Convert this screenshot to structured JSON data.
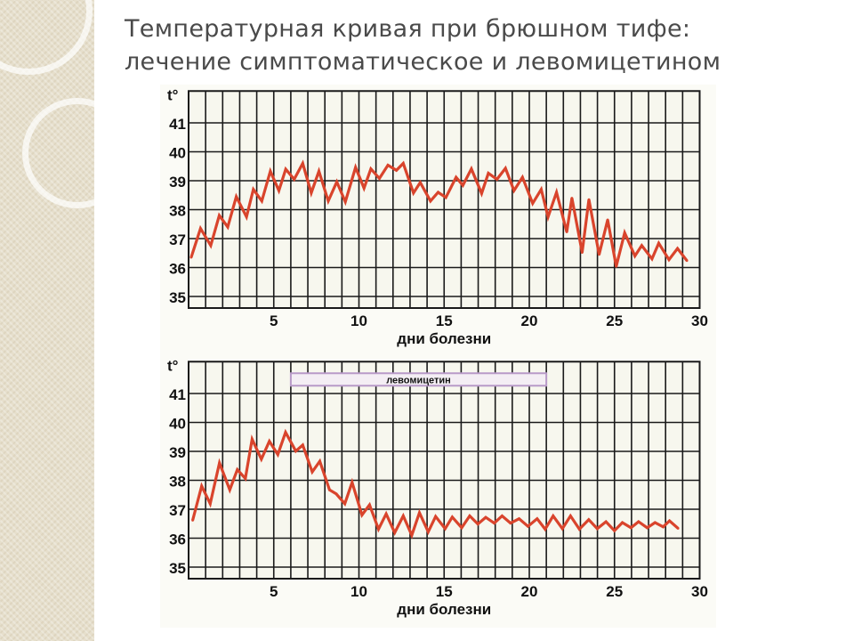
{
  "slide": {
    "title_line1": "Температурная кривая при брюшном тифе:",
    "title_line2": "лечение симптоматическое и левомицетином"
  },
  "colors": {
    "curve": "#d9442c",
    "grid": "#1a1a1a",
    "band": "#b89ac8",
    "plot_bg": "#f7f7ee"
  },
  "chart_data": [
    {
      "type": "line",
      "title": "",
      "xlabel": "дни болезни",
      "ylabel": "t°",
      "xlim": [
        0,
        30
      ],
      "ylim": [
        34.6,
        42.1
      ],
      "xticks": [
        "5",
        "10",
        "15",
        "20",
        "25",
        "30"
      ],
      "yticks": [
        "35",
        "36",
        "37",
        "38",
        "39",
        "40",
        "41"
      ],
      "grid": true,
      "x": [
        0.15,
        0.7,
        1.3,
        1.8,
        2.3,
        2.8,
        3.4,
        3.8,
        4.3,
        4.8,
        5.3,
        5.7,
        6.2,
        6.7,
        7.2,
        7.65,
        8.2,
        8.7,
        9.2,
        9.8,
        10.3,
        10.7,
        11.2,
        11.7,
        12.2,
        12.6,
        13.2,
        13.6,
        14.2,
        14.65,
        15.1,
        15.7,
        16.1,
        16.6,
        17.2,
        17.6,
        18.1,
        18.6,
        19.1,
        19.6,
        20.2,
        20.7,
        21.1,
        21.6,
        22.2,
        22.5,
        23.1,
        23.5,
        24.1,
        24.6,
        25.1,
        25.6,
        26.2,
        26.6,
        27.2,
        27.6,
        28.2,
        28.7,
        29.25
      ],
      "y": [
        36.35,
        37.35,
        36.76,
        37.8,
        37.4,
        38.45,
        37.75,
        38.7,
        38.3,
        39.33,
        38.66,
        39.4,
        39.05,
        39.6,
        38.58,
        39.33,
        38.3,
        38.96,
        38.27,
        39.46,
        38.74,
        39.41,
        39.08,
        39.54,
        39.36,
        39.6,
        38.58,
        38.94,
        38.3,
        38.6,
        38.42,
        39.12,
        38.84,
        39.41,
        38.56,
        39.26,
        39.05,
        39.43,
        38.66,
        39.12,
        38.22,
        38.7,
        37.75,
        38.6,
        37.23,
        38.4,
        36.52,
        38.35,
        36.45,
        37.65,
        36.04,
        37.2,
        36.4,
        36.76,
        36.3,
        36.84,
        36.27,
        36.66,
        36.24
      ]
    },
    {
      "type": "line",
      "title": "",
      "xlabel": "дни болезни",
      "ylabel": "t°",
      "xlim": [
        0,
        30
      ],
      "ylim": [
        34.6,
        42.1
      ],
      "xticks": [
        "5",
        "10",
        "15",
        "20",
        "25",
        "30"
      ],
      "yticks": [
        "35",
        "36",
        "37",
        "38",
        "39",
        "40",
        "41"
      ],
      "grid": true,
      "annotation": {
        "text": "левомицетин",
        "from_day": 6,
        "to_day": 21
      },
      "x": [
        0.24,
        0.77,
        1.27,
        1.81,
        2.42,
        2.86,
        3.33,
        3.73,
        4.27,
        4.74,
        5.24,
        5.69,
        6.29,
        6.7,
        7.26,
        7.7,
        8.27,
        8.67,
        9.17,
        9.6,
        10.18,
        10.62,
        11.15,
        11.6,
        12.1,
        12.6,
        13.1,
        13.55,
        14.07,
        14.5,
        15.06,
        15.48,
        16.03,
        16.5,
        16.98,
        17.44,
        17.94,
        18.4,
        18.9,
        19.4,
        19.92,
        20.46,
        20.93,
        21.4,
        21.94,
        22.42,
        22.94,
        23.49,
        23.99,
        24.5,
        25.0,
        25.46,
        25.97,
        26.41,
        26.92,
        27.38,
        27.86,
        28.23,
        28.73
      ],
      "y": [
        36.62,
        37.8,
        37.19,
        38.6,
        37.67,
        38.37,
        38.06,
        39.42,
        38.73,
        39.35,
        38.89,
        39.66,
        39.01,
        39.22,
        38.29,
        38.66,
        37.67,
        37.53,
        37.19,
        37.93,
        36.8,
        37.15,
        36.31,
        36.84,
        36.19,
        36.77,
        36.1,
        36.88,
        36.22,
        36.75,
        36.33,
        36.73,
        36.36,
        36.77,
        36.49,
        36.72,
        36.52,
        36.77,
        36.52,
        36.67,
        36.41,
        36.67,
        36.31,
        36.77,
        36.33,
        36.77,
        36.31,
        36.64,
        36.33,
        36.57,
        36.26,
        36.54,
        36.36,
        36.57,
        36.36,
        36.54,
        36.39,
        36.6,
        36.34
      ]
    }
  ]
}
